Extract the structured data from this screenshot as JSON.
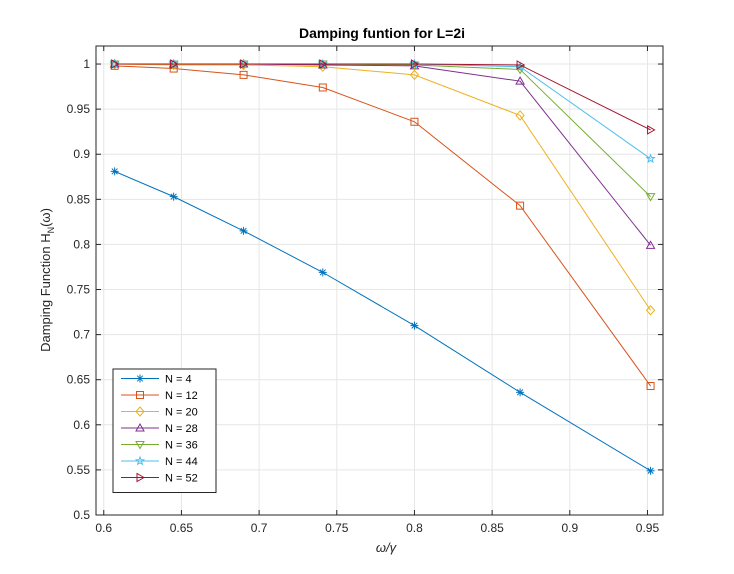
{
  "chart_data": {
    "type": "line",
    "title": "Damping funtion for L=2i",
    "xlabel": "ω/γ",
    "ylabel": "Damping Function H",
    "ylabel_sub": "N",
    "ylabel_suffix": "(ω)",
    "xlim": [
      0.595,
      0.96
    ],
    "ylim": [
      0.5,
      1.02
    ],
    "xticks": [
      0.6,
      0.65,
      0.7,
      0.75,
      0.8,
      0.85,
      0.9,
      0.95
    ],
    "xtick_labels": [
      "0.6",
      "0.65",
      "0.7",
      "0.75",
      "0.8",
      "0.85",
      "0.9",
      "0.95"
    ],
    "yticks": [
      0.5,
      0.55,
      0.6,
      0.65,
      0.7,
      0.75,
      0.8,
      0.85,
      0.9,
      0.95,
      1
    ],
    "ytick_labels": [
      "0.5",
      "0.55",
      "0.6",
      "0.65",
      "0.7",
      "0.75",
      "0.8",
      "0.85",
      "0.9",
      "0.95",
      "1"
    ],
    "grid": true,
    "legend_position": "bottom-left",
    "x": [
      0.607,
      0.645,
      0.69,
      0.741,
      0.8,
      0.868,
      0.952
    ],
    "series": [
      {
        "name": "N = 4",
        "color": "#0072bd",
        "marker": "asterisk",
        "values": [
          0.881,
          0.853,
          0.815,
          0.769,
          0.71,
          0.636,
          0.549
        ]
      },
      {
        "name": "N = 12",
        "color": "#d95319",
        "marker": "square",
        "values": [
          0.998,
          0.995,
          0.988,
          0.974,
          0.936,
          0.843,
          0.643
        ]
      },
      {
        "name": "N = 20",
        "color": "#edb120",
        "marker": "diamond",
        "values": [
          1.0,
          0.999,
          0.999,
          0.997,
          0.988,
          0.943,
          0.727
        ]
      },
      {
        "name": "N = 28",
        "color": "#7e2f8e",
        "marker": "triangle-up",
        "values": [
          1.0,
          1.0,
          1.0,
          0.999,
          0.998,
          0.981,
          0.799
        ]
      },
      {
        "name": "N = 36",
        "color": "#77ac30",
        "marker": "triangle-down",
        "values": [
          1.0,
          1.0,
          1.0,
          1.0,
          0.999,
          0.994,
          0.853
        ]
      },
      {
        "name": "N = 44",
        "color": "#4dbeee",
        "marker": "pentagram",
        "values": [
          1.0,
          1.0,
          1.0,
          1.0,
          1.0,
          0.997,
          0.895
        ]
      },
      {
        "name": "N = 52",
        "color": "#a2142f",
        "marker": "triangle-right",
        "values": [
          1.0,
          1.0,
          1.0,
          1.0,
          1.0,
          0.999,
          0.927
        ]
      }
    ]
  }
}
